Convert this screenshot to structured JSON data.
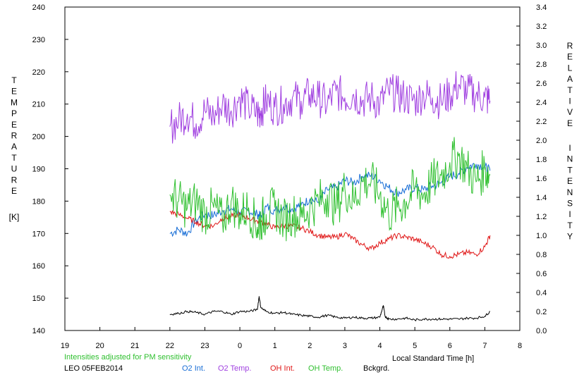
{
  "chart_data": {
    "type": "line",
    "left_axis_label": [
      "T",
      "E",
      "M",
      "P",
      "E",
      "R",
      "A",
      "T",
      "U",
      "R",
      "E"
    ],
    "left_axis_unit": "[K]",
    "right_axis_label": [
      "R",
      "E",
      "L",
      "A",
      "T",
      "I",
      "V",
      "E",
      "I",
      "N",
      "T",
      "E",
      "N",
      "S",
      "I",
      "T",
      "Y"
    ],
    "xlabel": "Local Standard Time [h]",
    "left_ylim": [
      140,
      240
    ],
    "right_ylim": [
      0.0,
      3.4
    ],
    "xlim": [
      19,
      32
    ],
    "left_ticks": [
      "140",
      "150",
      "160",
      "170",
      "180",
      "190",
      "200",
      "210",
      "220",
      "230",
      "240"
    ],
    "right_ticks": [
      "0.0",
      "0.2",
      "0.4",
      "0.6",
      "0.8",
      "1.0",
      "1.2",
      "1.4",
      "1.6",
      "1.8",
      "2.0",
      "2.2",
      "2.4",
      "2.6",
      "2.8",
      "3.0",
      "3.2",
      "3.4"
    ],
    "x_ticks": [
      "19",
      "20",
      "21",
      "22",
      "23",
      "0",
      "1",
      "2",
      "3",
      "4",
      "5",
      "6",
      "7",
      "8"
    ],
    "note": "Intensities adjusted for PM sensitivity",
    "station": "LEO 05FEB2014",
    "colors": {
      "o2_int": "#1a6fd6",
      "o2_temp": "#a040e0",
      "oh_int": "#e01818",
      "oh_temp": "#30c030",
      "bckgrd": "#000000"
    },
    "series": [
      {
        "name": "O2 Int.",
        "axis": "right",
        "color": "#1a6fd6",
        "x": [
          22.0,
          22.25,
          22.5,
          22.75,
          23.0,
          23.25,
          23.5,
          23.75,
          24.0,
          24.25,
          24.5,
          24.6,
          24.75,
          25.0,
          25.25,
          25.5,
          25.75,
          26.0,
          26.25,
          26.5,
          26.75,
          27.0,
          27.25,
          27.5,
          27.75,
          28.0,
          28.25,
          28.5,
          28.75,
          29.0,
          29.25,
          29.5,
          29.75,
          30.0,
          30.25,
          30.5,
          30.75,
          31.0,
          31.15
        ],
        "values": [
          1.02,
          1.06,
          1.02,
          1.16,
          1.22,
          1.21,
          1.26,
          1.28,
          1.24,
          1.26,
          1.22,
          1.2,
          1.3,
          1.26,
          1.3,
          1.28,
          1.32,
          1.38,
          1.35,
          1.48,
          1.5,
          1.58,
          1.55,
          1.62,
          1.63,
          1.58,
          1.5,
          1.45,
          1.48,
          1.5,
          1.48,
          1.52,
          1.55,
          1.62,
          1.65,
          1.72,
          1.75,
          1.72,
          1.68
        ]
      },
      {
        "name": "O2 Temp.",
        "axis": "left",
        "color": "#a040e0",
        "x": [
          22.0,
          22.25,
          22.5,
          22.75,
          23.0,
          23.25,
          23.5,
          23.75,
          24.0,
          24.25,
          24.5,
          24.6,
          24.75,
          25.0,
          25.25,
          25.5,
          25.75,
          26.0,
          26.25,
          26.5,
          26.75,
          27.0,
          27.25,
          27.5,
          27.75,
          28.0,
          28.25,
          28.5,
          28.75,
          29.0,
          29.25,
          29.5,
          29.75,
          30.0,
          30.25,
          30.5,
          30.75,
          31.0,
          31.15
        ],
        "values": [
          203,
          205,
          207,
          204,
          208,
          206,
          210,
          208,
          212,
          209,
          207,
          208,
          211,
          209,
          210,
          212,
          211,
          213,
          212,
          210,
          214,
          212,
          213,
          211,
          212,
          210,
          214,
          213,
          212,
          211,
          213,
          212,
          211,
          213,
          216,
          214,
          213,
          212,
          211
        ]
      },
      {
        "name": "OH Int.",
        "axis": "right",
        "color": "#e01818",
        "x": [
          22.0,
          22.25,
          22.5,
          22.75,
          23.0,
          23.25,
          23.5,
          23.75,
          24.0,
          24.25,
          24.5,
          24.6,
          24.75,
          25.0,
          25.25,
          25.5,
          25.75,
          26.0,
          26.25,
          26.5,
          26.75,
          27.0,
          27.25,
          27.5,
          27.75,
          28.0,
          28.25,
          28.5,
          28.75,
          29.0,
          29.25,
          29.5,
          29.75,
          30.0,
          30.25,
          30.5,
          30.75,
          31.0,
          31.15
        ],
        "values": [
          1.25,
          1.22,
          1.18,
          1.14,
          1.1,
          1.1,
          1.18,
          1.2,
          1.22,
          1.18,
          1.15,
          1.14,
          1.12,
          1.08,
          1.1,
          1.1,
          1.08,
          1.04,
          1.0,
          0.98,
          0.98,
          1.02,
          0.96,
          0.9,
          0.86,
          0.92,
          0.96,
          1.0,
          0.98,
          0.96,
          0.92,
          0.88,
          0.8,
          0.78,
          0.8,
          0.82,
          0.8,
          0.88,
          1.0
        ]
      },
      {
        "name": "OH Temp.",
        "axis": "left",
        "color": "#30c030",
        "x": [
          22.0,
          22.25,
          22.5,
          22.75,
          23.0,
          23.25,
          23.5,
          23.75,
          24.0,
          24.25,
          24.5,
          24.6,
          24.75,
          25.0,
          25.25,
          25.5,
          25.75,
          26.0,
          26.25,
          26.5,
          26.75,
          27.0,
          27.25,
          27.5,
          27.75,
          28.0,
          28.25,
          28.5,
          28.75,
          29.0,
          29.25,
          29.5,
          29.75,
          30.0,
          30.25,
          30.5,
          30.75,
          31.0,
          31.15
        ],
        "values": [
          182,
          180,
          178,
          180,
          176,
          178,
          174,
          180,
          176,
          178,
          172,
          174,
          176,
          178,
          174,
          176,
          175,
          178,
          180,
          182,
          178,
          184,
          180,
          186,
          186,
          182,
          176,
          178,
          180,
          184,
          182,
          186,
          188,
          192,
          194,
          190,
          186,
          190,
          188
        ]
      },
      {
        "name": "Bckgrd.",
        "axis": "right",
        "color": "#000000",
        "x": [
          22.0,
          22.25,
          22.5,
          22.75,
          23.0,
          23.25,
          23.5,
          23.75,
          24.0,
          24.25,
          24.5,
          24.55,
          24.6,
          24.75,
          25.0,
          25.25,
          25.5,
          25.75,
          26.0,
          26.25,
          26.5,
          26.75,
          27.0,
          27.25,
          27.5,
          27.75,
          28.0,
          28.1,
          28.15,
          28.25,
          28.5,
          28.75,
          29.0,
          29.25,
          29.5,
          29.75,
          30.0,
          30.25,
          30.5,
          30.75,
          31.0,
          31.15
        ],
        "values": [
          0.17,
          0.18,
          0.2,
          0.19,
          0.17,
          0.2,
          0.2,
          0.17,
          0.2,
          0.2,
          0.22,
          0.36,
          0.24,
          0.2,
          0.18,
          0.19,
          0.17,
          0.16,
          0.15,
          0.14,
          0.16,
          0.14,
          0.13,
          0.14,
          0.13,
          0.13,
          0.14,
          0.26,
          0.15,
          0.12,
          0.12,
          0.13,
          0.11,
          0.12,
          0.12,
          0.12,
          0.12,
          0.12,
          0.13,
          0.13,
          0.15,
          0.2
        ]
      }
    ]
  }
}
